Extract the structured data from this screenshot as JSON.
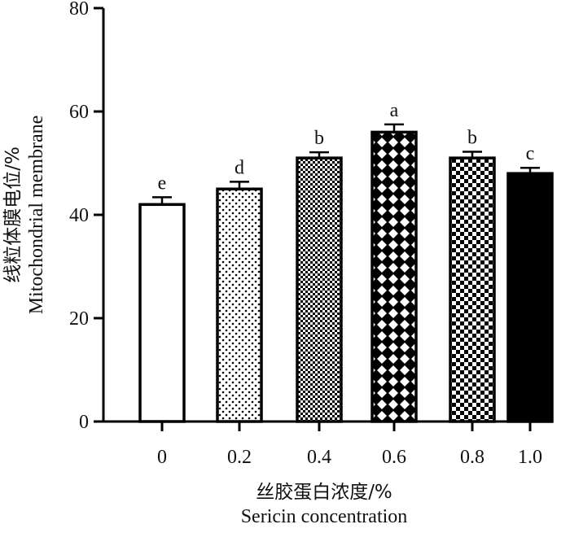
{
  "chart_data": {
    "type": "bar",
    "categories": [
      "0",
      "0.2",
      "0.4",
      "0.6",
      "0.8",
      "1.0"
    ],
    "values": [
      42,
      45,
      51,
      56,
      51,
      48
    ],
    "errors": [
      1.4,
      1.4,
      1.1,
      1.5,
      1.2,
      1.1
    ],
    "significance": [
      "e",
      "d",
      "b",
      "a",
      "b",
      "c"
    ],
    "patterns": [
      "white",
      "dots",
      "fine-checker",
      "lattice",
      "checker",
      "solid"
    ],
    "xlabel_cn": "丝胶蛋白浓度/%",
    "xlabel_en": "Sericin concentration",
    "ylabel_cn": "线粒体膜电位/%",
    "ylabel_en": "Mitochondrial membrane",
    "ylim": [
      0,
      80
    ],
    "yticks": [
      0,
      20,
      40,
      60,
      80
    ],
    "grid": false,
    "colors": {
      "ink": "#000000",
      "background": "#ffffff"
    }
  }
}
